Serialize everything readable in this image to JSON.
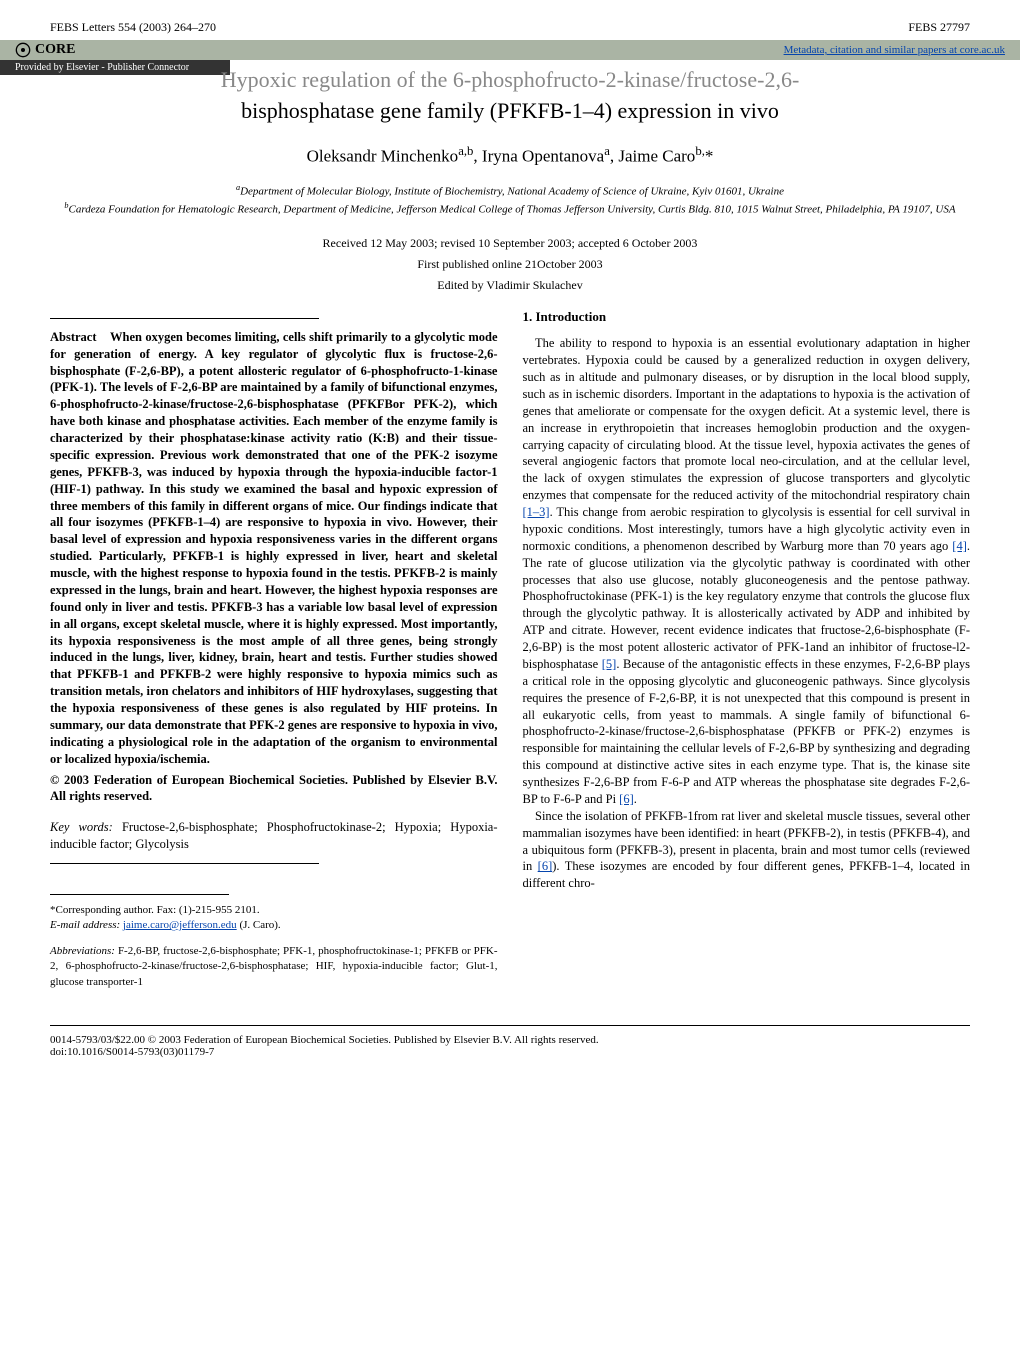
{
  "header": {
    "journal_left": "FEBS Letters 554 (2003) 264–270",
    "journal_right": "FEBS 27797"
  },
  "core": {
    "label": "CORE",
    "right_text": "Metadata, citation and similar papers at core.ac.uk",
    "right_url_text": "core.ac.uk",
    "provider": "Provided by Elsevier - Publisher Connector"
  },
  "title": {
    "partial": "Hypoxic regulation of the 6-phosphofructo-2-kinase/fructose-2,6-",
    "main": "bisphosphatase gene family (PFKFB-1–4) expression in vivo"
  },
  "authors_html": "Oleksandr Minchenko<sup>a,b</sup>, Iryna Opentanova<sup>a</sup>, Jaime Caro<sup>b,</sup>*",
  "affiliations": {
    "a": "Department of Molecular Biology, Institute of Biochemistry, National Academy of Science of Ukraine, Kyiv 01601, Ukraine",
    "b": "Cardeza Foundation for Hematologic Research, Department of Medicine, Jefferson Medical College of Thomas Jefferson University, Curtis Bldg. 810, 1015 Walnut Street, Philadelphia, PA 19107, USA"
  },
  "dates": "Received 12 May 2003; revised 10 September 2003; accepted 6 October 2003",
  "first_published": "First published online 21October 2003",
  "editor": "Edited by Vladimir Skulachev",
  "abstract": {
    "label": "Abstract",
    "body": "When oxygen becomes limiting, cells shift primarily to a glycolytic mode for generation of energy. A key regulator of glycolytic flux is fructose-2,6-bisphosphate (F-2,6-BP), a potent allosteric regulator of 6-phosphofructo-1-kinase (PFK-1). The levels of F-2,6-BP are maintained by a family of bifunctional enzymes, 6-phosphofructo-2-kinase/fructose-2,6-bisphosphatase (PFKFBor PFK-2), which have both kinase and phosphatase activities. Each member of the enzyme family is characterized by their phosphatase:kinase activity ratio (K:B) and their tissue-specific expression. Previous work demonstrated that one of the PFK-2 isozyme genes, PFKFB-3, was induced by hypoxia through the hypoxia-inducible factor-1 (HIF-1) pathway. In this study we examined the basal and hypoxic expression of three members of this family in different organs of mice. Our findings indicate that all four isozymes (PFKFB-1–4) are responsive to hypoxia in vivo. However, their basal level of expression and hypoxia responsiveness varies in the different organs studied. Particularly, PFKFB-1 is highly expressed in liver, heart and skeletal muscle, with the highest response to hypoxia found in the testis. PFKFB-2 is mainly expressed in the lungs, brain and heart. However, the highest hypoxia responses are found only in liver and testis. PFKFB-3 has a variable low basal level of expression in all organs, except skeletal muscle, where it is highly expressed. Most importantly, its hypoxia responsiveness is the most ample of all three genes, being strongly induced in the lungs, liver, kidney, brain, heart and testis. Further studies showed that PFKFB-1 and PFKFB-2 were highly responsive to hypoxia mimics such as transition metals, iron chelators and inhibitors of HIF hydroxylases, suggesting that the hypoxia responsiveness of these genes is also regulated by HIF proteins. In summary, our data demonstrate that PFK-2 genes are responsive to hypoxia in vivo, indicating a physiological role in the adaptation of the organism to environmental or localized hypoxia/ischemia.",
    "copyright": "© 2003 Federation of European Biochemical Societies. Published by Elsevier B.V. All rights reserved."
  },
  "keywords": {
    "label": "Key words:",
    "body": "Fructose-2,6-bisphosphate; Phosphofructokinase-2; Hypoxia; Hypoxia-inducible factor; Glycolysis"
  },
  "footnote": {
    "corr": "*Corresponding author. Fax: (1)-215-955 2101.",
    "email_label": "E-mail address:",
    "email": "jaime.caro@jefferson.edu",
    "email_suffix": "(J. Caro)."
  },
  "abbrev": {
    "label": "Abbreviations:",
    "body": "F-2,6-BP, fructose-2,6-bisphosphate; PFK-1, phosphofructokinase-1; PFKFB or PFK-2, 6-phosphofructo-2-kinase/fructose-2,6-bisphosphatase; HIF, hypoxia-inducible factor; Glut-1, glucose transporter-1"
  },
  "intro": {
    "heading": "1. Introduction",
    "p1_a": "The ability to respond to hypoxia is an essential evolutionary adaptation in higher vertebrates. Hypoxia could be caused by a generalized reduction in oxygen delivery, such as in altitude and pulmonary diseases, or by disruption in the local blood supply, such as in ischemic disorders. Important in the adaptations to hypoxia is the activation of genes that ameliorate or compensate for the oxygen deficit. At a systemic level, there is an increase in erythropoietin that increases hemoglobin production and the oxygen-carrying capacity of circulating blood. At the tissue level, hypoxia activates the genes of several angiogenic factors that promote local neo-circulation, and at the cellular level, the lack of oxygen stimulates the expression of glucose transporters and glycolytic enzymes that compensate for the reduced activity of the mitochondrial respiratory chain ",
    "c1": "[1–3]",
    "p1_b": ". This change from aerobic respiration to glycolysis is essential for cell survival in hypoxic conditions. Most interestingly, tumors have a high glycolytic activity even in normoxic conditions, a phenomenon described by Warburg more than 70 years ago ",
    "c2": "[4]",
    "p1_c": ". The rate of glucose utilization via the glycolytic pathway is coordinated with other processes that also use glucose, notably gluconeogenesis and the pentose pathway. Phosphofructokinase (PFK-1) is the key regulatory enzyme that controls the glucose flux through the glycolytic pathway. It is allosterically activated by ADP and inhibited by ATP and citrate. However, recent evidence indicates that fructose-2,6-bisphosphate (F-2,6-BP) is the most potent allosteric activator of PFK-1and an inhibitor of fructose-l2-bisphosphatase ",
    "c3": "[5]",
    "p1_d": ". Because of the antagonistic effects in these enzymes, F-2,6-BP plays a critical role in the opposing glycolytic and gluconeogenic pathways. Since glycolysis requires the presence of F-2,6-BP, it is not unexpected that this compound is present in all eukaryotic cells, from yeast to mammals. A single family of bifunctional 6-phosphofructo-2-kinase/fructose-2,6-bisphosphatase (PFKFB or PFK-2) enzymes is responsible for maintaining the cellular levels of F-2,6-BP by synthesizing and degrading this compound at distinctive active sites in each enzyme type. That is, the kinase site synthesizes F-2,6-BP from F-6-P and ATP whereas the phosphatase site degrades F-2,6-BP to F-6-P and Pi ",
    "c4": "[6]",
    "p1_e": ".",
    "p2_a": "Since the isolation of PFKFB-1from rat liver and skeletal muscle tissues, several other mammalian isozymes have been identified: in heart (PFKFB-2), in testis (PFKFB-4), and a ubiquitous form (PFKFB-3), present in placenta, brain and most tumor cells (reviewed in ",
    "c5": "[6]",
    "p2_b": "). These isozymes are encoded by four different genes, PFKFB-1–4, located in different chro-"
  },
  "bottom": {
    "line1": "0014-5793/03/$22.00 © 2003 Federation of European Biochemical Societies. Published by Elsevier B.V. All rights reserved.",
    "line2": "doi:10.1016/S0014-5793(03)01179-7"
  },
  "colors": {
    "link": "#0645ad",
    "banner_bg": "#aab4a4",
    "provider_bg": "#333333",
    "text": "#000000",
    "bg": "#ffffff"
  },
  "typography": {
    "body_fontsize_pt": 12.5,
    "title_fontsize_pt": 22,
    "authors_fontsize_pt": 17,
    "affil_fontsize_pt": 11,
    "footnote_fontsize_pt": 11
  }
}
